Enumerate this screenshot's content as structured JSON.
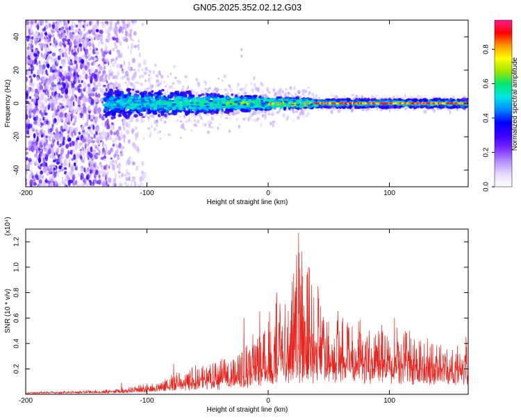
{
  "title": "GN05.2025.352.02.12.G03",
  "colors": {
    "snr_line": "#e8221c",
    "colormap": [
      "#ffffff",
      "#e6d9ff",
      "#b48cff",
      "#7a2cff",
      "#3a00ff",
      "#0000ff",
      "#0088ff",
      "#00e5e5",
      "#00e676",
      "#9be600",
      "#ffff00",
      "#ff9900",
      "#ff0000",
      "#ff1a8c"
    ]
  },
  "chart_data": [
    {
      "type": "heatmap",
      "xlabel": "Height of straight line (km)",
      "ylabel": "Frequency (Hz)",
      "xlim": [
        -200,
        165
      ],
      "ylim": [
        -50,
        50
      ],
      "xticks": [
        {
          "value": -200,
          "label": "-200"
        },
        {
          "value": -100,
          "label": "-100"
        },
        {
          "value": 0,
          "label": "0"
        },
        {
          "value": 100,
          "label": "100"
        }
      ],
      "yticks": [
        {
          "value": -40,
          "label": "-40"
        },
        {
          "value": -20,
          "label": "-20"
        },
        {
          "value": 0,
          "label": "0"
        },
        {
          "value": 20,
          "label": "20"
        },
        {
          "value": 40,
          "label": "40"
        }
      ],
      "colorbar": {
        "label": "Normalized spectral amplitude",
        "range": [
          0,
          0.97
        ],
        "ticks": [
          {
            "value": 0.0,
            "label": "0.0"
          },
          {
            "value": 0.2,
            "label": "0.2"
          },
          {
            "value": 0.4,
            "label": "0.4"
          },
          {
            "value": 0.6,
            "label": "0.6"
          },
          {
            "value": 0.8,
            "label": "0.8"
          }
        ]
      },
      "features": {
        "noise_region_x": [
          -200,
          -105
        ],
        "band_start_x": -135,
        "band_halfwidth_start_hz": 9,
        "band_halfwidth_end_hz": 2.5,
        "saturated_line_from_x": 40,
        "outlier": {
          "x": -22,
          "y": 30
        }
      }
    },
    {
      "type": "line",
      "xlabel": "Height of straight line (km)",
      "ylabel": "SNR (10 * v/v)",
      "y_multiplier": "(x10⁴)",
      "xlim": [
        -200,
        165
      ],
      "ylim": [
        0,
        1.3
      ],
      "xticks": [
        {
          "value": -200,
          "label": "-200"
        },
        {
          "value": -100,
          "label": "-100"
        },
        {
          "value": 0,
          "label": "0"
        },
        {
          "value": 100,
          "label": "100"
        }
      ],
      "yticks": [
        {
          "value": 0.2,
          "label": "0.2"
        },
        {
          "value": 0.4,
          "label": "0.4"
        },
        {
          "value": 0.6,
          "label": "0.6"
        },
        {
          "value": 0.8,
          "label": "0.8"
        },
        {
          "value": 1.0,
          "label": "1.0"
        },
        {
          "value": 1.2,
          "label": "1.2"
        }
      ],
      "series": [
        {
          "envelope_x": [
            -200,
            -150,
            -120,
            -100,
            -80,
            -60,
            -40,
            -20,
            -10,
            0,
            10,
            20,
            25,
            30,
            40,
            50,
            60,
            80,
            100,
            120,
            140,
            165
          ],
          "envelope_base": [
            0.01,
            0.015,
            0.02,
            0.03,
            0.05,
            0.07,
            0.09,
            0.11,
            0.14,
            0.15,
            0.18,
            0.2,
            0.22,
            0.22,
            0.2,
            0.2,
            0.2,
            0.19,
            0.18,
            0.18,
            0.17,
            0.16
          ],
          "envelope_peak": [
            0.02,
            0.03,
            0.05,
            0.08,
            0.15,
            0.22,
            0.3,
            0.4,
            0.5,
            0.62,
            0.82,
            0.95,
            1.27,
            1.05,
            0.85,
            0.7,
            0.62,
            0.58,
            0.55,
            0.48,
            0.42,
            0.4
          ],
          "spikes": [
            {
              "x": -121,
              "y": 0.09
            },
            {
              "x": -78,
              "y": 0.24
            },
            {
              "x": -20,
              "y": 0.6
            },
            {
              "x": -7,
              "y": 0.65
            },
            {
              "x": 7,
              "y": 0.8
            },
            {
              "x": 21,
              "y": 0.95
            },
            {
              "x": 25,
              "y": 1.27
            },
            {
              "x": 33,
              "y": 1.0
            },
            {
              "x": 41,
              "y": 0.85
            },
            {
              "x": 104,
              "y": 0.6
            },
            {
              "x": 163,
              "y": 0.45
            }
          ]
        }
      ]
    }
  ]
}
